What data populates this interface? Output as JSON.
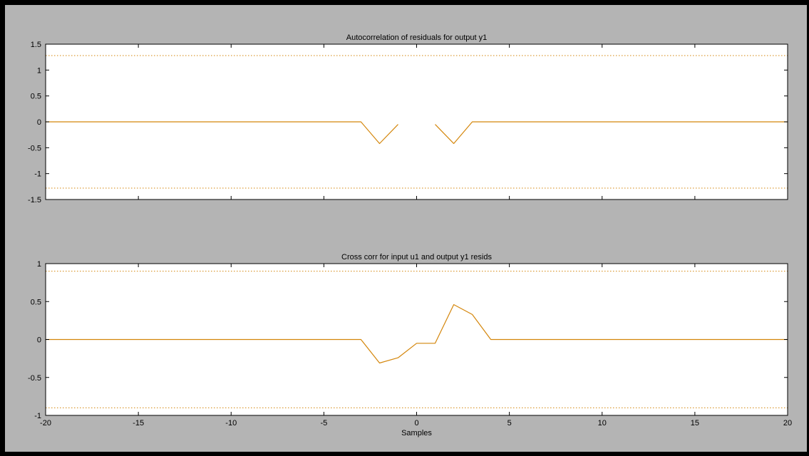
{
  "figure": {
    "background": "#b4b4b4",
    "axes_background": "#ffffff",
    "line_color": "#d4860b",
    "confidence_color": "#d4860b"
  },
  "chart_data": [
    {
      "type": "line",
      "title": "Autocorrelation of residuals for output y1",
      "xlabel": "",
      "ylabel": "",
      "xlim": [
        -20,
        20
      ],
      "ylim": [
        -1.5,
        1.5
      ],
      "xticks": [
        -20,
        -15,
        -10,
        -5,
        0,
        5,
        10,
        15,
        20
      ],
      "xtick_labels_visible": false,
      "yticks": [
        -1.5,
        -1,
        -0.5,
        0,
        0.5,
        1,
        1.5
      ],
      "ytick_labels": [
        "-1.5",
        "-1",
        "-0.5",
        "0",
        "0.5",
        "1",
        "1.5"
      ],
      "grid": false,
      "confidence_bounds": [
        1.28,
        -1.28
      ],
      "confidence_style": "dotted",
      "segments": [
        {
          "x": [
            -20,
            -3,
            -2,
            -1
          ],
          "y": [
            0,
            0,
            -0.42,
            -0.05
          ]
        },
        {
          "x": [
            1,
            2,
            3,
            20
          ],
          "y": [
            -0.05,
            -0.42,
            0,
            0
          ]
        }
      ]
    },
    {
      "type": "line",
      "title": "Cross corr for input u1 and output y1 resids",
      "xlabel": "Samples",
      "ylabel": "",
      "xlim": [
        -20,
        20
      ],
      "ylim": [
        -1,
        1
      ],
      "xticks": [
        -20,
        -15,
        -10,
        -5,
        0,
        5,
        10,
        15,
        20
      ],
      "xtick_labels": [
        "-20",
        "-15",
        "-10",
        "-5",
        "0",
        "5",
        "10",
        "15",
        "20"
      ],
      "xtick_labels_visible": true,
      "yticks": [
        -1,
        -0.5,
        0,
        0.5,
        1
      ],
      "ytick_labels": [
        "-1",
        "-0.5",
        "0",
        "0.5",
        "1"
      ],
      "grid": false,
      "confidence_bounds": [
        0.9,
        -0.9
      ],
      "confidence_style": "dotted",
      "segments": [
        {
          "x": [
            -20,
            -3,
            -2,
            -1,
            0,
            1,
            2,
            3,
            4,
            20
          ],
          "y": [
            0,
            0,
            -0.31,
            -0.24,
            -0.05,
            -0.05,
            0.46,
            0.33,
            0,
            0
          ]
        }
      ]
    }
  ]
}
